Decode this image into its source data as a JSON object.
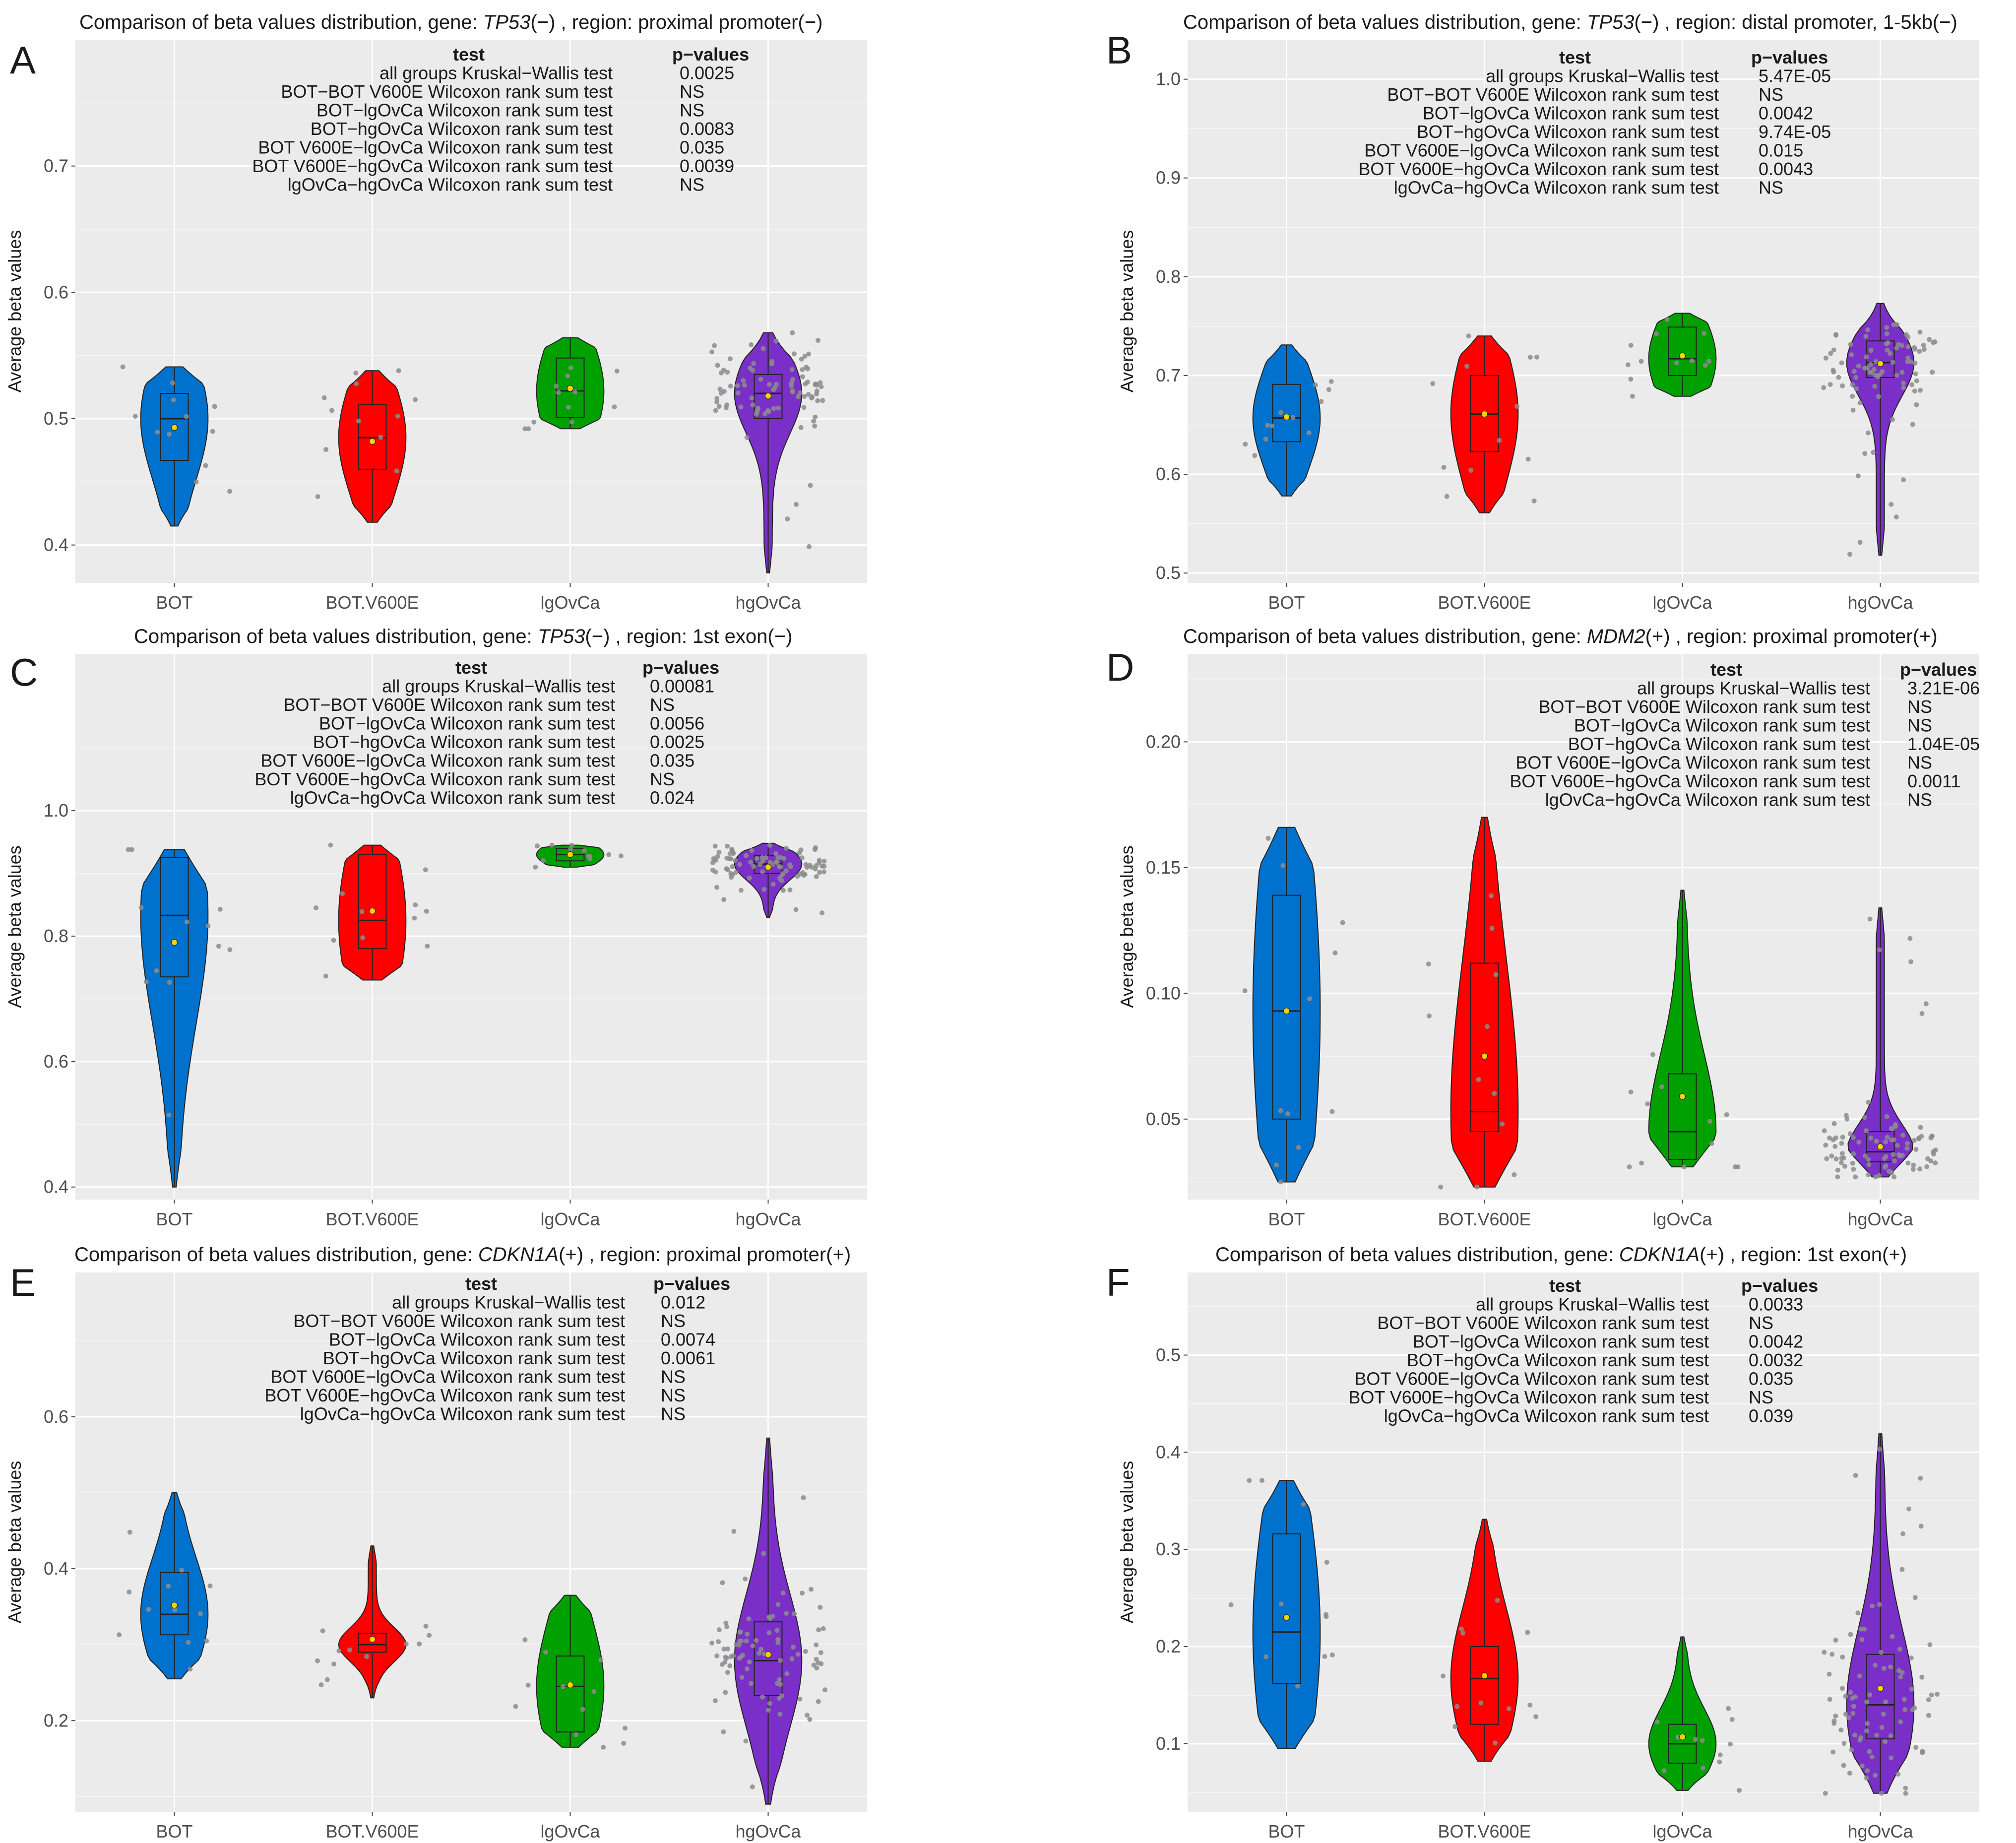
{
  "figure": {
    "panels": [
      {
        "letter": "A",
        "title_prefix": "Comparison of beta values distribution, gene: ",
        "gene": "TP53",
        "title_suffix": "(−) , region: proximal promoter(−)",
        "ylabel": "Average beta values",
        "stats": {
          "header_test": "test",
          "header_p": "p−values",
          "rows": [
            {
              "test": "all groups Kruskal−Wallis test",
              "p": "0.0025"
            },
            {
              "test": "BOT−BOT V600E Wilcoxon rank sum test",
              "p": "NS"
            },
            {
              "test": "BOT−lgOvCa Wilcoxon rank sum test",
              "p": "NS"
            },
            {
              "test": "BOT−hgOvCa Wilcoxon rank sum test",
              "p": "0.0083"
            },
            {
              "test": "BOT V600E−lgOvCa Wilcoxon rank sum test",
              "p": "0.035"
            },
            {
              "test": "BOT V600E−hgOvCa Wilcoxon rank sum test",
              "p": "0.0039"
            },
            {
              "test": "lgOvCa−hgOvCa Wilcoxon rank sum test",
              "p": "NS"
            }
          ]
        }
      },
      {
        "letter": "B",
        "title_prefix": "Comparison of beta values distribution, gene: ",
        "gene": "TP53",
        "title_suffix": "(−) , region: distal promoter, 1-5kb(−)",
        "ylabel": "Average beta values",
        "stats": {
          "header_test": "test",
          "header_p": "p−values",
          "rows": [
            {
              "test": "all groups Kruskal−Wallis test",
              "p": "5.47E-05"
            },
            {
              "test": "BOT−BOT V600E Wilcoxon rank sum test",
              "p": "NS"
            },
            {
              "test": "BOT−lgOvCa Wilcoxon rank sum test",
              "p": "0.0042"
            },
            {
              "test": "BOT−hgOvCa Wilcoxon rank sum test",
              "p": "9.74E-05"
            },
            {
              "test": "BOT V600E−lgOvCa Wilcoxon rank sum test",
              "p": "0.015"
            },
            {
              "test": "BOT V600E−hgOvCa Wilcoxon rank sum test",
              "p": "0.0043"
            },
            {
              "test": "lgOvCa−hgOvCa Wilcoxon rank sum test",
              "p": "NS"
            }
          ]
        }
      },
      {
        "letter": "C",
        "title_prefix": "Comparison of beta values distribution, gene: ",
        "gene": "TP53",
        "title_suffix": "(−) , region: 1st exon(−)",
        "ylabel": "Average beta values",
        "stats": {
          "header_test": "test",
          "header_p": "p−values",
          "rows": [
            {
              "test": "all groups Kruskal−Wallis test",
              "p": "0.00081"
            },
            {
              "test": "BOT−BOT V600E Wilcoxon rank sum test",
              "p": "NS"
            },
            {
              "test": "BOT−lgOvCa Wilcoxon rank sum test",
              "p": "0.0056"
            },
            {
              "test": "BOT−hgOvCa Wilcoxon rank sum test",
              "p": "0.0025"
            },
            {
              "test": "BOT V600E−lgOvCa Wilcoxon rank sum test",
              "p": "0.035"
            },
            {
              "test": "BOT V600E−hgOvCa Wilcoxon rank sum test",
              "p": "NS"
            },
            {
              "test": "lgOvCa−hgOvCa Wilcoxon rank sum test",
              "p": "0.024"
            }
          ]
        }
      },
      {
        "letter": "D",
        "title_prefix": "Comparison of beta values distribution, gene: ",
        "gene": "MDM2",
        "title_suffix": "(+) , region: proximal promoter(+)",
        "ylabel": "Average beta values",
        "stats": {
          "header_test": "test",
          "header_p": "p−values",
          "rows": [
            {
              "test": "all groups Kruskal−Wallis test",
              "p": "3.21E-06"
            },
            {
              "test": "BOT−BOT V600E Wilcoxon rank sum test",
              "p": "NS"
            },
            {
              "test": "BOT−lgOvCa Wilcoxon rank sum test",
              "p": "NS"
            },
            {
              "test": "BOT−hgOvCa Wilcoxon rank sum test",
              "p": "1.04E-05"
            },
            {
              "test": "BOT V600E−lgOvCa Wilcoxon rank sum test",
              "p": "NS"
            },
            {
              "test": "BOT V600E−hgOvCa Wilcoxon rank sum test",
              "p": "0.0011"
            },
            {
              "test": "lgOvCa−hgOvCa Wilcoxon rank sum test",
              "p": "NS"
            }
          ]
        }
      },
      {
        "letter": "E",
        "title_prefix": "Comparison of beta values distribution, gene: ",
        "gene": "CDKN1A",
        "title_suffix": "(+) , region: proximal promoter(+)",
        "ylabel": "Average beta values",
        "stats": {
          "header_test": "test",
          "header_p": "p−values",
          "rows": [
            {
              "test": "all groups Kruskal−Wallis test",
              "p": "0.012"
            },
            {
              "test": "BOT−BOT V600E Wilcoxon rank sum test",
              "p": "NS"
            },
            {
              "test": "BOT−lgOvCa Wilcoxon rank sum test",
              "p": "0.0074"
            },
            {
              "test": "BOT−hgOvCa Wilcoxon rank sum test",
              "p": "0.0061"
            },
            {
              "test": "BOT V600E−lgOvCa Wilcoxon rank sum test",
              "p": "NS"
            },
            {
              "test": "BOT V600E−hgOvCa Wilcoxon rank sum test",
              "p": "NS"
            },
            {
              "test": "lgOvCa−hgOvCa Wilcoxon rank sum test",
              "p": "NS"
            }
          ]
        }
      },
      {
        "letter": "F",
        "title_prefix": "Comparison of beta values distribution, gene: ",
        "gene": "CDKN1A",
        "title_suffix": "(+) , region: 1st exon(+)",
        "ylabel": "Average beta values",
        "stats": {
          "header_test": "test",
          "header_p": "p−values",
          "rows": [
            {
              "test": "all groups Kruskal−Wallis test",
              "p": "0.0033"
            },
            {
              "test": "BOT−BOT V600E Wilcoxon rank sum test",
              "p": "NS"
            },
            {
              "test": "BOT−lgOvCa Wilcoxon rank sum test",
              "p": "0.0042"
            },
            {
              "test": "BOT−hgOvCa Wilcoxon rank sum test",
              "p": "0.0032"
            },
            {
              "test": "BOT V600E−lgOvCa Wilcoxon rank sum test",
              "p": "0.035"
            },
            {
              "test": "BOT V600E−hgOvCa Wilcoxon rank sum test",
              "p": "NS"
            },
            {
              "test": "lgOvCa−hgOvCa Wilcoxon rank sum test",
              "p": "0.039"
            }
          ]
        }
      }
    ]
  },
  "chart_data": [
    {
      "panel": "A",
      "type": "violin",
      "title": "Comparison of beta values distribution, gene: TP53(−) , region: proximal promoter(−)",
      "xlabel": "",
      "ylabel": "Average beta values",
      "ylim": [
        0.37,
        0.8
      ],
      "yticks": [
        0.4,
        0.5,
        0.6,
        0.7
      ],
      "grid": true,
      "colors": [
        "#0072CE",
        "#FF0000",
        "#00A000",
        "#7B2FC9"
      ],
      "categories": [
        "BOT",
        "BOT.V600E",
        "lgOvCa",
        "hgOvCa"
      ],
      "series": [
        {
          "name": "BOT",
          "min": 0.415,
          "q1": 0.467,
          "median": 0.5,
          "q3": 0.52,
          "max": 0.541,
          "mean": 0.493
        },
        {
          "name": "BOT.V600E",
          "min": 0.418,
          "q1": 0.46,
          "median": 0.485,
          "q3": 0.511,
          "max": 0.538,
          "mean": 0.482
        },
        {
          "name": "lgOvCa",
          "min": 0.492,
          "q1": 0.501,
          "median": 0.522,
          "q3": 0.548,
          "max": 0.564,
          "mean": 0.524
        },
        {
          "name": "hgOvCa",
          "min": 0.378,
          "q1": 0.5,
          "median": 0.52,
          "q3": 0.535,
          "max": 0.568,
          "mean": 0.518
        }
      ]
    },
    {
      "panel": "B",
      "type": "violin",
      "title": "Comparison of beta values distribution, gene: TP53(−) , region: distal promoter, 1-5kb(−)",
      "xlabel": "",
      "ylabel": "Average beta values",
      "ylim": [
        0.49,
        1.04
      ],
      "yticks": [
        0.5,
        0.6,
        0.7,
        0.8,
        0.9,
        1.0
      ],
      "grid": true,
      "colors": [
        "#0072CE",
        "#FF0000",
        "#00A000",
        "#7B2FC9"
      ],
      "categories": [
        "BOT",
        "BOT.V600E",
        "lgOvCa",
        "hgOvCa"
      ],
      "series": [
        {
          "name": "BOT",
          "min": 0.578,
          "q1": 0.633,
          "median": 0.657,
          "q3": 0.691,
          "max": 0.731,
          "mean": 0.658
        },
        {
          "name": "BOT.V600E",
          "min": 0.561,
          "q1": 0.623,
          "median": 0.661,
          "q3": 0.7,
          "max": 0.74,
          "mean": 0.661
        },
        {
          "name": "lgOvCa",
          "min": 0.679,
          "q1": 0.7,
          "median": 0.717,
          "q3": 0.749,
          "max": 0.763,
          "mean": 0.72
        },
        {
          "name": "hgOvCa",
          "min": 0.518,
          "q1": 0.698,
          "median": 0.713,
          "q3": 0.735,
          "max": 0.773,
          "mean": 0.712
        }
      ]
    },
    {
      "panel": "C",
      "type": "violin",
      "title": "Comparison of beta values distribution, gene: TP53(−) , region: 1st exon(−)",
      "xlabel": "",
      "ylabel": "Average beta values",
      "ylim": [
        0.38,
        1.25
      ],
      "yticks": [
        0.4,
        0.6,
        0.8,
        1.0
      ],
      "grid": true,
      "colors": [
        "#0072CE",
        "#FF0000",
        "#00A000",
        "#7B2FC9"
      ],
      "categories": [
        "BOT",
        "BOT.V600E",
        "lgOvCa",
        "hgOvCa"
      ],
      "series": [
        {
          "name": "BOT",
          "min": 0.4,
          "q1": 0.735,
          "median": 0.833,
          "q3": 0.925,
          "max": 0.938,
          "mean": 0.79
        },
        {
          "name": "BOT.V600E",
          "min": 0.73,
          "q1": 0.78,
          "median": 0.825,
          "q3": 0.93,
          "max": 0.945,
          "mean": 0.84
        },
        {
          "name": "lgOvCa",
          "min": 0.91,
          "q1": 0.92,
          "median": 0.93,
          "q3": 0.94,
          "max": 0.945,
          "mean": 0.93
        },
        {
          "name": "hgOvCa",
          "min": 0.83,
          "q1": 0.9,
          "median": 0.915,
          "q3": 0.928,
          "max": 0.948,
          "mean": 0.91
        }
      ]
    },
    {
      "panel": "D",
      "type": "violin",
      "title": "Comparison of beta values distribution, gene: MDM2(+) , region: proximal promoter(+)",
      "xlabel": "",
      "ylabel": "Average beta values",
      "ylim": [
        0.018,
        0.235
      ],
      "yticks": [
        0.05,
        0.1,
        0.15,
        0.2
      ],
      "grid": true,
      "colors": [
        "#0072CE",
        "#FF0000",
        "#00A000",
        "#7B2FC9"
      ],
      "categories": [
        "BOT",
        "BOT.V600E",
        "lgOvCa",
        "hgOvCa"
      ],
      "series": [
        {
          "name": "BOT",
          "min": 0.025,
          "q1": 0.05,
          "median": 0.093,
          "q3": 0.139,
          "max": 0.166,
          "mean": 0.093
        },
        {
          "name": "BOT.V600E",
          "min": 0.023,
          "q1": 0.045,
          "median": 0.053,
          "q3": 0.112,
          "max": 0.17,
          "mean": 0.075
        },
        {
          "name": "lgOvCa",
          "min": 0.031,
          "q1": 0.034,
          "median": 0.045,
          "q3": 0.068,
          "max": 0.141,
          "mean": 0.059
        },
        {
          "name": "hgOvCa",
          "min": 0.027,
          "q1": 0.033,
          "median": 0.037,
          "q3": 0.045,
          "max": 0.134,
          "mean": 0.039
        }
      ]
    },
    {
      "panel": "E",
      "type": "violin",
      "title": "Comparison of beta values distribution, gene: CDKN1A(+) , region: proximal promoter(+)",
      "xlabel": "",
      "ylabel": "Average beta values",
      "ylim": [
        0.08,
        0.79
      ],
      "yticks": [
        0.2,
        0.4,
        0.6
      ],
      "grid": true,
      "colors": [
        "#0072CE",
        "#FF0000",
        "#00A000",
        "#7B2FC9"
      ],
      "categories": [
        "BOT",
        "BOT.V600E",
        "lgOvCa",
        "hgOvCa"
      ],
      "series": [
        {
          "name": "BOT",
          "min": 0.255,
          "q1": 0.313,
          "median": 0.34,
          "q3": 0.395,
          "max": 0.5,
          "mean": 0.352
        },
        {
          "name": "BOT.V600E",
          "min": 0.23,
          "q1": 0.29,
          "median": 0.3,
          "q3": 0.315,
          "max": 0.43,
          "mean": 0.307
        },
        {
          "name": "lgOvCa",
          "min": 0.165,
          "q1": 0.185,
          "median": 0.245,
          "q3": 0.285,
          "max": 0.365,
          "mean": 0.247
        },
        {
          "name": "hgOvCa",
          "min": 0.09,
          "q1": 0.233,
          "median": 0.279,
          "q3": 0.33,
          "max": 0.572,
          "mean": 0.287
        }
      ]
    },
    {
      "panel": "F",
      "type": "violin",
      "title": "Comparison of beta values distribution, gene: CDKN1A(+) , region: 1st exon(+)",
      "xlabel": "",
      "ylabel": "Average beta values",
      "ylim": [
        0.03,
        0.585
      ],
      "yticks": [
        0.1,
        0.2,
        0.3,
        0.4,
        0.5
      ],
      "grid": true,
      "colors": [
        "#0072CE",
        "#FF0000",
        "#00A000",
        "#7B2FC9"
      ],
      "categories": [
        "BOT",
        "BOT.V600E",
        "lgOvCa",
        "hgOvCa"
      ],
      "series": [
        {
          "name": "BOT",
          "min": 0.095,
          "q1": 0.162,
          "median": 0.215,
          "q3": 0.316,
          "max": 0.371,
          "mean": 0.23
        },
        {
          "name": "BOT.V600E",
          "min": 0.082,
          "q1": 0.12,
          "median": 0.167,
          "q3": 0.2,
          "max": 0.331,
          "mean": 0.17
        },
        {
          "name": "lgOvCa",
          "min": 0.052,
          "q1": 0.08,
          "median": 0.1,
          "q3": 0.12,
          "max": 0.21,
          "mean": 0.107
        },
        {
          "name": "hgOvCa",
          "min": 0.049,
          "q1": 0.105,
          "median": 0.14,
          "q3": 0.192,
          "max": 0.419,
          "mean": 0.157
        }
      ]
    }
  ]
}
